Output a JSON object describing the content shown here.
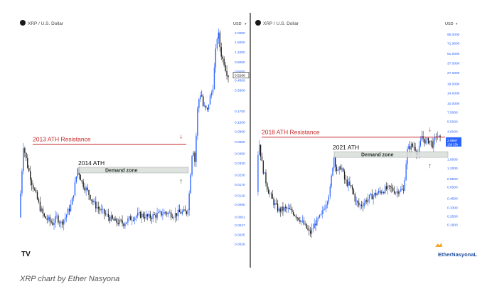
{
  "colors": {
    "candle": "#1a1a1a",
    "candle_blue": "#2962ff",
    "resistance": "#c62828",
    "zone_fill": "#d9dedb",
    "zone_edge": "#9aa39e",
    "support_arrow": "#1b5e20",
    "axis_text": "#2962ff",
    "brand_orange": "#f5a623"
  },
  "caption": "XRP chart by Ether Nasyona",
  "chart_data": [
    {
      "type": "candlestick",
      "panel": "left",
      "symbol_label": "XRP / U.S. Dollar",
      "currency_badge": "USD",
      "scale": "log",
      "ylim": [
        0.0022,
        2.4
      ],
      "y_ticks": [
        "2.0000",
        "1.5000",
        "1.1000",
        "0.8000",
        "0.6000",
        "0.4500",
        "0.3300",
        "0.1700",
        "0.1200",
        "0.0900",
        "0.0650",
        "0.0450",
        "0.0330",
        "0.0230",
        "0.0170",
        "0.0120",
        "0.0090",
        "0.0061",
        "0.0047",
        "0.0035",
        "0.0026"
      ],
      "y_tick_values": [
        2.0,
        1.5,
        1.1,
        0.8,
        0.6,
        0.45,
        0.33,
        0.17,
        0.12,
        0.09,
        0.065,
        0.045,
        0.033,
        0.023,
        0.017,
        0.012,
        0.009,
        0.0061,
        0.0047,
        0.0035,
        0.0026
      ],
      "last_price": "0.5268",
      "last_price_value": 0.5268,
      "annotations": {
        "resistance_label": "2013 ATH Resistance",
        "resistance_level": 0.06,
        "ath_label": "2014 ATH",
        "zone_label": "Demand zone",
        "zone_range": [
          0.025,
          0.029
        ]
      },
      "price_path": [
        [
          0.0,
          0.006
        ],
        [
          0.02,
          0.058
        ],
        [
          0.04,
          0.03
        ],
        [
          0.06,
          0.018
        ],
        [
          0.08,
          0.012
        ],
        [
          0.1,
          0.008
        ],
        [
          0.12,
          0.006
        ],
        [
          0.14,
          0.0055
        ],
        [
          0.16,
          0.005
        ],
        [
          0.18,
          0.006
        ],
        [
          0.2,
          0.005
        ],
        [
          0.22,
          0.006
        ],
        [
          0.25,
          0.009
        ],
        [
          0.28,
          0.028
        ],
        [
          0.3,
          0.018
        ],
        [
          0.33,
          0.013
        ],
        [
          0.36,
          0.009
        ],
        [
          0.4,
          0.007
        ],
        [
          0.43,
          0.006
        ],
        [
          0.46,
          0.0052
        ],
        [
          0.5,
          0.005
        ],
        [
          0.54,
          0.006
        ],
        [
          0.58,
          0.0065
        ],
        [
          0.62,
          0.006
        ],
        [
          0.66,
          0.0065
        ],
        [
          0.7,
          0.007
        ],
        [
          0.74,
          0.0065
        ],
        [
          0.77,
          0.007
        ],
        [
          0.8,
          0.007
        ],
        [
          0.81,
          0.009
        ],
        [
          0.82,
          0.025
        ],
        [
          0.83,
          0.06
        ],
        [
          0.84,
          0.035
        ],
        [
          0.855,
          0.22
        ],
        [
          0.87,
          0.32
        ],
        [
          0.88,
          0.2
        ],
        [
          0.9,
          0.17
        ],
        [
          0.91,
          0.25
        ],
        [
          0.925,
          0.33
        ],
        [
          0.94,
          1.1
        ],
        [
          0.95,
          2.2
        ],
        [
          0.96,
          1.3
        ],
        [
          0.97,
          0.9
        ],
        [
          0.98,
          0.8
        ],
        [
          0.99,
          0.6
        ],
        [
          1.0,
          0.5268
        ]
      ]
    },
    {
      "type": "candlestick",
      "panel": "right",
      "symbol_label": "XRP / U.S. Dollar",
      "currency_badge": "USD",
      "scale": "log",
      "ylim": [
        0.085,
        120
      ],
      "y_ticks": [
        "95.0000",
        "71.0000",
        "51.0000",
        "37.0000",
        "27.0000",
        "19.0000",
        "14.0000",
        "10.0000",
        "7.5000",
        "5.5000",
        "4.0000",
        "3.0000",
        "1.6000",
        "1.2000",
        "0.8500",
        "0.6500",
        "0.4500",
        "0.3300",
        "0.2500",
        "0.1900"
      ],
      "y_tick_values": [
        95,
        71,
        51,
        37,
        27,
        19,
        14,
        10,
        7.5,
        5.5,
        4.0,
        3.0,
        1.6,
        1.2,
        0.85,
        0.65,
        0.45,
        0.33,
        0.25,
        0.19
      ],
      "last_price": "2.9887",
      "last_price_sub": "13d 15h",
      "last_price_value": 2.9887,
      "annotations": {
        "resistance_label": "2018 ATH Resistance",
        "resistance_level": 3.3,
        "ath_label": "2021 ATH",
        "zone_label": "Demand zone",
        "zone_range": [
          1.75,
          2.05
        ]
      },
      "price_path": [
        [
          0.0,
          0.55
        ],
        [
          0.01,
          3.2
        ],
        [
          0.03,
          1.3
        ],
        [
          0.06,
          0.6
        ],
        [
          0.09,
          0.4
        ],
        [
          0.12,
          0.3
        ],
        [
          0.16,
          0.32
        ],
        [
          0.2,
          0.28
        ],
        [
          0.24,
          0.22
        ],
        [
          0.27,
          0.17
        ],
        [
          0.29,
          0.14
        ],
        [
          0.32,
          0.2
        ],
        [
          0.35,
          0.25
        ],
        [
          0.38,
          0.4
        ],
        [
          0.4,
          0.6
        ],
        [
          0.42,
          1.8
        ],
        [
          0.44,
          1.0
        ],
        [
          0.46,
          1.3
        ],
        [
          0.48,
          0.8
        ],
        [
          0.5,
          0.7
        ],
        [
          0.52,
          0.6
        ],
        [
          0.54,
          0.4
        ],
        [
          0.56,
          0.35
        ],
        [
          0.58,
          0.38
        ],
        [
          0.61,
          0.45
        ],
        [
          0.64,
          0.5
        ],
        [
          0.67,
          0.55
        ],
        [
          0.7,
          0.6
        ],
        [
          0.73,
          0.62
        ],
        [
          0.76,
          0.55
        ],
        [
          0.78,
          0.6
        ],
        [
          0.8,
          0.56
        ],
        [
          0.82,
          2.1
        ],
        [
          0.84,
          2.5
        ],
        [
          0.86,
          2.4
        ],
        [
          0.88,
          1.9
        ],
        [
          0.9,
          3.4
        ],
        [
          0.92,
          2.8
        ],
        [
          0.94,
          3.0
        ],
        [
          0.96,
          2.5
        ],
        [
          0.98,
          3.6
        ],
        [
          1.0,
          2.9887
        ]
      ]
    }
  ],
  "tradingview_badge": "TV",
  "brand": "EtherNasyonaL"
}
